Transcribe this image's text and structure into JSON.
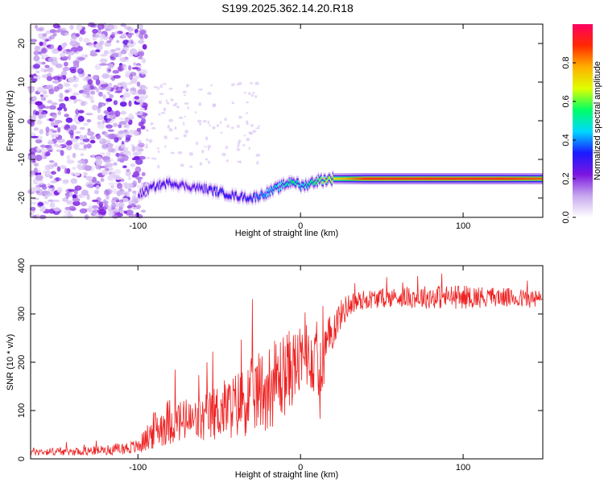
{
  "figure_title": "S199.2025.362.14.20.R18",
  "chart_data": [
    {
      "type": "heatmap",
      "title": "S199.2025.362.14.20.R18",
      "xlabel": "Height of straight line (km)",
      "ylabel": "Frequency (Hz)",
      "xlim": [
        -166,
        149
      ],
      "ylim": [
        -25,
        25
      ],
      "x_ticks": [
        -100,
        0,
        100
      ],
      "x_tick_labels": [
        "-100",
        "0",
        "100"
      ],
      "y_ticks": [
        -20,
        -10,
        0,
        10,
        20
      ],
      "y_tick_labels": [
        "-20",
        "-10",
        "0",
        "10",
        "20"
      ],
      "colorbar": {
        "label": "Normalized spectral amplitude",
        "range": [
          0,
          1
        ],
        "ticks": [
          0.0,
          0.2,
          0.4,
          0.6,
          0.8
        ],
        "tick_labels": [
          "0.0",
          "0.2",
          "0.4",
          "0.6",
          "0.8"
        ],
        "colors": [
          "#ffffff",
          "#c7a8ee",
          "#7b16e0",
          "#1a1aff",
          "#00d8ff",
          "#00ff66",
          "#dfff00",
          "#ffb000",
          "#ff2a00",
          "#ff0060"
        ]
      },
      "ridge_track": {
        "x": [
          -100,
          -90,
          -80,
          -70,
          -60,
          -50,
          -40,
          -30,
          -20,
          -10,
          -5,
          0,
          10,
          20,
          40,
          60,
          80,
          100,
          120,
          149
        ],
        "freq": [
          -19,
          -17,
          -16,
          -17,
          -17.5,
          -18.5,
          -19.5,
          -20,
          -18.5,
          -16.5,
          -15.5,
          -17,
          -15.5,
          -15,
          -15,
          -15,
          -15,
          -15,
          -15,
          -15
        ],
        "amplitude": [
          0.25,
          0.3,
          0.3,
          0.25,
          0.3,
          0.35,
          0.3,
          0.35,
          0.45,
          0.5,
          0.55,
          0.45,
          0.6,
          0.7,
          0.9,
          0.9,
          0.9,
          0.9,
          0.9,
          0.85
        ]
      },
      "noise_region_x": [
        -166,
        -95
      ]
    },
    {
      "type": "line",
      "title": "",
      "xlabel": "Height of straight line (km)",
      "ylabel": "SNR (10 * v/v)",
      "xlim": [
        -166,
        149
      ],
      "ylim": [
        0,
        400
      ],
      "x_ticks": [
        -100,
        0,
        100
      ],
      "x_tick_labels": [
        "-100",
        "0",
        "100"
      ],
      "y_ticks": [
        0,
        100,
        200,
        300,
        400
      ],
      "y_tick_labels": [
        "0",
        "100",
        "200",
        "300",
        "400"
      ],
      "series": [
        {
          "name": "SNR",
          "color": "#ee2222",
          "x": [
            -166,
            -140,
            -120,
            -100,
            -95,
            -90,
            -80,
            -70,
            -60,
            -50,
            -40,
            -30,
            -20,
            -15,
            -10,
            -5,
            0,
            5,
            10,
            12,
            15,
            20,
            25,
            30,
            40,
            60,
            80,
            100,
            120,
            149
          ],
          "mean": [
            15,
            15,
            18,
            25,
            40,
            60,
            80,
            75,
            80,
            100,
            110,
            130,
            150,
            160,
            175,
            190,
            200,
            210,
            200,
            160,
            220,
            270,
            300,
            320,
            330,
            335,
            335,
            335,
            335,
            330
          ],
          "spread": [
            8,
            8,
            10,
            15,
            25,
            40,
            50,
            45,
            50,
            60,
            70,
            80,
            90,
            90,
            90,
            80,
            70,
            60,
            80,
            80,
            60,
            40,
            30,
            25,
            20,
            20,
            25,
            25,
            20,
            20
          ]
        }
      ]
    }
  ]
}
